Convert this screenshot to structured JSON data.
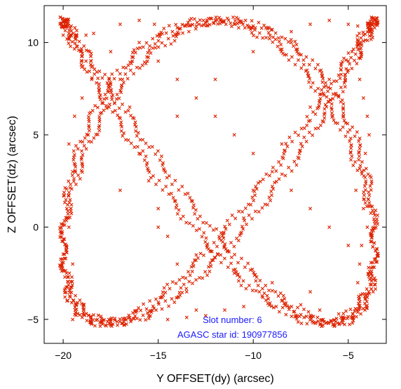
{
  "chart_data": {
    "type": "scatter",
    "title": "",
    "xlabel": "Y OFFSET(dy) (arcsec)",
    "ylabel": "Z OFFSET(dz) (arcsec)",
    "xlim": [
      -21.0,
      -3.0
    ],
    "ylim": [
      -6.3,
      12.0
    ],
    "xticks": [
      -20,
      -15,
      -10,
      -5
    ],
    "xtick_labels": [
      "−20",
      "−15",
      "−10",
      "−5"
    ],
    "yticks": [
      -5,
      0,
      5,
      10
    ],
    "ytick_labels": [
      "−5",
      "0",
      "5",
      "10"
    ],
    "grid": false,
    "marker": "x",
    "marker_color": "#dd2200",
    "annotation_color": "#1a1aff",
    "annotations": [
      {
        "text": "Slot number: 6",
        "x": -11.1,
        "y": -5.0
      },
      {
        "text": "AGASC star id: 190977856",
        "x": -11.1,
        "y": -5.8
      }
    ],
    "series": [
      {
        "lissajous": {
          "x_center": -11.8,
          "x_amplitude": 8.2,
          "x_frequency": 3,
          "x_phase": 0.6,
          "y_center": 3.0,
          "y_amplitude": 8.2,
          "y_frequency": 4,
          "y_phase": 0.35
        },
        "points": [
          [
            -20.0,
            10.4
          ],
          [
            -19.8,
            10.2
          ],
          [
            -18.8,
            10.4
          ],
          [
            -18.4,
            10.5
          ],
          [
            -17.0,
            11.0
          ],
          [
            -16.0,
            11.2
          ],
          [
            -15.2,
            11.0
          ],
          [
            -14.0,
            10.8
          ],
          [
            -13.0,
            10.9
          ],
          [
            -12.0,
            11.2
          ],
          [
            -11.0,
            11.0
          ],
          [
            -10.0,
            10.9
          ],
          [
            -9.0,
            10.7
          ],
          [
            -8.0,
            10.6
          ],
          [
            -7.0,
            11.0
          ],
          [
            -6.0,
            11.2
          ],
          [
            -5.0,
            11.0
          ],
          [
            -4.5,
            10.9
          ],
          [
            -4.2,
            10.4
          ],
          [
            -4.8,
            9.5
          ],
          [
            -5.0,
            8.5
          ],
          [
            -4.4,
            8.0
          ],
          [
            -4.2,
            7.0
          ],
          [
            -4.0,
            6.0
          ],
          [
            -3.9,
            5.0
          ],
          [
            -4.1,
            4.0
          ],
          [
            -4.3,
            3.0
          ],
          [
            -4.6,
            2.0
          ],
          [
            -4.2,
            1.0
          ],
          [
            -4.0,
            0.0
          ],
          [
            -4.3,
            -1.0
          ],
          [
            -4.4,
            -2.0
          ],
          [
            -4.5,
            -3.0
          ],
          [
            -4.0,
            -3.8
          ],
          [
            -4.5,
            -4.6
          ],
          [
            -5.5,
            -4.7
          ],
          [
            -6.5,
            -4.5
          ],
          [
            -7.5,
            -4.2
          ],
          [
            -8.5,
            -4.0
          ],
          [
            -9.5,
            -3.8
          ],
          [
            -10.5,
            -4.3
          ],
          [
            -11.5,
            -4.5
          ],
          [
            -12.5,
            -4.8
          ],
          [
            -13.5,
            -4.9
          ],
          [
            -14.5,
            -5.0
          ],
          [
            -15.5,
            -4.8
          ],
          [
            -16.5,
            -4.9
          ],
          [
            -17.5,
            -5.0
          ],
          [
            -18.5,
            -5.2
          ],
          [
            -19.5,
            -5.0
          ],
          [
            -19.8,
            -4.0
          ],
          [
            -19.5,
            -2.0
          ],
          [
            -19.7,
            0.0
          ],
          [
            -19.6,
            1.0
          ],
          [
            -19.5,
            3.0
          ],
          [
            -19.7,
            4.5
          ],
          [
            -19.4,
            6.0
          ],
          [
            -19.0,
            7.0
          ],
          [
            -18.5,
            8.0
          ],
          [
            -18.8,
            9.0
          ],
          [
            -17.5,
            9.5
          ],
          [
            -17.0,
            8.0
          ],
          [
            -16.5,
            6.5
          ],
          [
            -16.0,
            4.0
          ],
          [
            -15.5,
            2.5
          ],
          [
            -15.0,
            1.0
          ],
          [
            -14.5,
            -0.5
          ],
          [
            -14.0,
            -2.0
          ],
          [
            -13.5,
            -3.5
          ],
          [
            -13.0,
            -4.5
          ],
          [
            -16.0,
            10.0
          ],
          [
            -15.0,
            9.0
          ],
          [
            -14.0,
            8.0
          ],
          [
            -13.0,
            7.0
          ],
          [
            -12.0,
            6.0
          ],
          [
            -11.0,
            5.0
          ],
          [
            -10.0,
            4.0
          ],
          [
            -9.0,
            3.0
          ],
          [
            -8.0,
            2.0
          ],
          [
            -7.0,
            1.0
          ],
          [
            -6.0,
            0.0
          ],
          [
            -5.0,
            -1.0
          ],
          [
            -16.0,
            4.0
          ],
          [
            -14.0,
            6.0
          ],
          [
            -12.0,
            8.0
          ],
          [
            -10.0,
            9.5
          ],
          [
            -8.0,
            10.0
          ],
          [
            -17.0,
            2.0
          ],
          [
            -15.0,
            0.0
          ],
          [
            -13.0,
            -1.5
          ],
          [
            -11.0,
            -2.5
          ],
          [
            -9.0,
            -3.0
          ],
          [
            -7.0,
            -3.5
          ],
          [
            -10.5,
            0.5
          ],
          [
            -10.0,
            2.0
          ],
          [
            -8.5,
            4.5
          ],
          [
            -7.0,
            6.5
          ],
          [
            -6.0,
            8.0
          ],
          [
            -5.0,
            9.0
          ]
        ]
      }
    ]
  }
}
